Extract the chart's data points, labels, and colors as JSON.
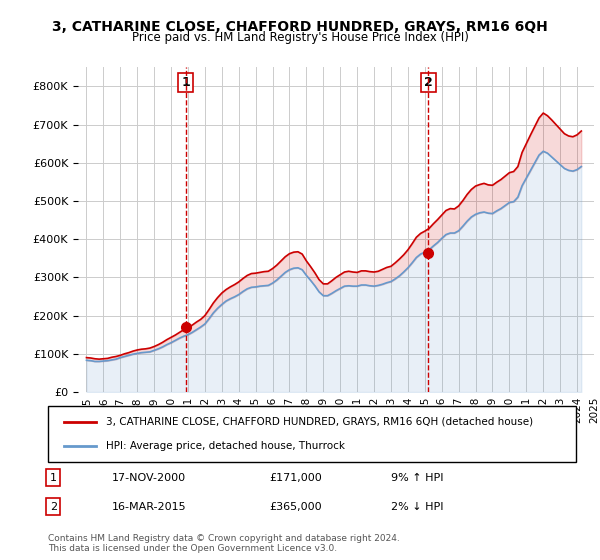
{
  "title": "3, CATHARINE CLOSE, CHAFFORD HUNDRED, GRAYS, RM16 6QH",
  "subtitle": "Price paid vs. HM Land Registry's House Price Index (HPI)",
  "legend_line1": "3, CATHARINE CLOSE, CHAFFORD HUNDRED, GRAYS, RM16 6QH (detached house)",
  "legend_line2": "HPI: Average price, detached house, Thurrock",
  "ylabel_ticks": [
    "£0",
    "£100K",
    "£200K",
    "£300K",
    "£400K",
    "£500K",
    "£600K",
    "£700K",
    "£800K"
  ],
  "ytick_values": [
    0,
    100000,
    200000,
    300000,
    400000,
    500000,
    600000,
    700000,
    800000
  ],
  "ylim": [
    0,
    850000
  ],
  "sale1_label": "1",
  "sale1_date": "17-NOV-2000",
  "sale1_price": "£171,000",
  "sale1_hpi": "9% ↑ HPI",
  "sale1_year": 2000.88,
  "sale1_value": 171000,
  "sale2_label": "2",
  "sale2_date": "16-MAR-2015",
  "sale2_price": "£365,000",
  "sale2_hpi": "2% ↓ HPI",
  "sale2_year": 2015.21,
  "sale2_value": 365000,
  "copyright": "Contains HM Land Registry data © Crown copyright and database right 2024.\nThis data is licensed under the Open Government Licence v3.0.",
  "line_color_red": "#cc0000",
  "line_color_blue": "#6699cc",
  "marker_color_red": "#cc0000",
  "grid_color": "#cccccc",
  "dashed_color": "#cc0000",
  "hpi_years": [
    1995.0,
    1995.25,
    1995.5,
    1995.75,
    1996.0,
    1996.25,
    1996.5,
    1996.75,
    1997.0,
    1997.25,
    1997.5,
    1997.75,
    1998.0,
    1998.25,
    1998.5,
    1998.75,
    1999.0,
    1999.25,
    1999.5,
    1999.75,
    2000.0,
    2000.25,
    2000.5,
    2000.75,
    2001.0,
    2001.25,
    2001.5,
    2001.75,
    2002.0,
    2002.25,
    2002.5,
    2002.75,
    2003.0,
    2003.25,
    2003.5,
    2003.75,
    2004.0,
    2004.25,
    2004.5,
    2004.75,
    2005.0,
    2005.25,
    2005.5,
    2005.75,
    2006.0,
    2006.25,
    2006.5,
    2006.75,
    2007.0,
    2007.25,
    2007.5,
    2007.75,
    2008.0,
    2008.25,
    2008.5,
    2008.75,
    2009.0,
    2009.25,
    2009.5,
    2009.75,
    2010.0,
    2010.25,
    2010.5,
    2010.75,
    2011.0,
    2011.25,
    2011.5,
    2011.75,
    2012.0,
    2012.25,
    2012.5,
    2012.75,
    2013.0,
    2013.25,
    2013.5,
    2013.75,
    2014.0,
    2014.25,
    2014.5,
    2014.75,
    2015.0,
    2015.25,
    2015.5,
    2015.75,
    2016.0,
    2016.25,
    2016.5,
    2016.75,
    2017.0,
    2017.25,
    2017.5,
    2017.75,
    2018.0,
    2018.25,
    2018.5,
    2018.75,
    2019.0,
    2019.25,
    2019.5,
    2019.75,
    2020.0,
    2020.25,
    2020.5,
    2020.75,
    2021.0,
    2021.25,
    2021.5,
    2021.75,
    2022.0,
    2022.25,
    2022.5,
    2022.75,
    2023.0,
    2023.25,
    2023.5,
    2023.75,
    2024.0,
    2024.25
  ],
  "hpi_values": [
    83000,
    82000,
    80000,
    80000,
    81000,
    82000,
    84000,
    86000,
    90000,
    93000,
    96000,
    99000,
    101000,
    103000,
    104000,
    105000,
    109000,
    113000,
    118000,
    124000,
    129000,
    135000,
    141000,
    146000,
    150000,
    156000,
    163000,
    170000,
    178000,
    192000,
    207000,
    219000,
    229000,
    238000,
    244000,
    249000,
    255000,
    263000,
    270000,
    274000,
    275000,
    277000,
    278000,
    279000,
    285000,
    293000,
    303000,
    313000,
    320000,
    324000,
    325000,
    320000,
    305000,
    292000,
    278000,
    262000,
    252000,
    252000,
    258000,
    265000,
    271000,
    277000,
    278000,
    277000,
    277000,
    280000,
    280000,
    278000,
    277000,
    279000,
    282000,
    286000,
    289000,
    296000,
    304000,
    314000,
    325000,
    338000,
    352000,
    361000,
    366000,
    372000,
    382000,
    391000,
    402000,
    412000,
    416000,
    416000,
    422000,
    434000,
    447000,
    458000,
    465000,
    469000,
    471000,
    468000,
    467000,
    474000,
    480000,
    488000,
    496000,
    498000,
    510000,
    540000,
    560000,
    580000,
    600000,
    620000,
    630000,
    625000,
    615000,
    605000,
    595000,
    585000,
    580000,
    578000,
    582000,
    590000
  ],
  "price_years": [
    1995.0,
    1995.25,
    1995.5,
    1995.75,
    1996.0,
    1996.25,
    1996.5,
    1996.75,
    1997.0,
    1997.25,
    1997.5,
    1997.75,
    1998.0,
    1998.25,
    1998.5,
    1998.75,
    1999.0,
    1999.25,
    1999.5,
    1999.75,
    2000.0,
    2000.25,
    2000.5,
    2000.75,
    2001.0,
    2001.25,
    2001.5,
    2001.75,
    2002.0,
    2002.25,
    2002.5,
    2002.75,
    2003.0,
    2003.25,
    2003.5,
    2003.75,
    2004.0,
    2004.25,
    2004.5,
    2004.75,
    2005.0,
    2005.25,
    2005.5,
    2005.75,
    2006.0,
    2006.25,
    2006.5,
    2006.75,
    2007.0,
    2007.25,
    2007.5,
    2007.75,
    2008.0,
    2008.25,
    2008.5,
    2008.75,
    2009.0,
    2009.25,
    2009.5,
    2009.75,
    2010.0,
    2010.25,
    2010.5,
    2010.75,
    2011.0,
    2011.25,
    2011.5,
    2011.75,
    2012.0,
    2012.25,
    2012.5,
    2012.75,
    2013.0,
    2013.25,
    2013.5,
    2013.75,
    2014.0,
    2014.25,
    2014.5,
    2014.75,
    2015.0,
    2015.25,
    2015.5,
    2015.75,
    2016.0,
    2016.25,
    2016.5,
    2016.75,
    2017.0,
    2017.25,
    2017.5,
    2017.75,
    2018.0,
    2018.25,
    2018.5,
    2018.75,
    2019.0,
    2019.25,
    2019.5,
    2019.75,
    2020.0,
    2020.25,
    2020.5,
    2020.75,
    2021.0,
    2021.25,
    2021.5,
    2021.75,
    2022.0,
    2022.25,
    2022.5,
    2022.75,
    2023.0,
    2023.25,
    2023.5,
    2023.75,
    2024.0,
    2024.25
  ],
  "price_values": [
    90000,
    89000,
    87000,
    86000,
    87000,
    88000,
    91000,
    93000,
    96000,
    100000,
    103000,
    107000,
    110000,
    112000,
    113000,
    115000,
    119000,
    124000,
    130000,
    137000,
    143000,
    149000,
    156000,
    163000,
    168000,
    175000,
    183000,
    190000,
    200000,
    216000,
    233000,
    247000,
    259000,
    268000,
    275000,
    281000,
    288000,
    297000,
    305000,
    310000,
    311000,
    313000,
    315000,
    316000,
    323000,
    332000,
    343000,
    354000,
    362000,
    366000,
    367000,
    361000,
    343000,
    328000,
    312000,
    294000,
    283000,
    283000,
    291000,
    300000,
    307000,
    314000,
    316000,
    314000,
    313000,
    317000,
    317000,
    315000,
    314000,
    316000,
    321000,
    326000,
    329000,
    338000,
    348000,
    359000,
    372000,
    388000,
    405000,
    415000,
    421000,
    428000,
    440000,
    451000,
    463000,
    475000,
    480000,
    479000,
    487000,
    501000,
    517000,
    530000,
    539000,
    543000,
    546000,
    542000,
    541000,
    549000,
    556000,
    565000,
    574000,
    577000,
    590000,
    627000,
    650000,
    673000,
    695000,
    717000,
    730000,
    723000,
    712000,
    700000,
    688000,
    676000,
    670000,
    668000,
    673000,
    683000
  ],
  "xlim": [
    1994.5,
    2025.0
  ],
  "xtick_years": [
    1995,
    1996,
    1997,
    1998,
    1999,
    2000,
    2001,
    2002,
    2003,
    2004,
    2005,
    2006,
    2007,
    2008,
    2009,
    2010,
    2011,
    2012,
    2013,
    2014,
    2015,
    2016,
    2017,
    2018,
    2019,
    2020,
    2021,
    2022,
    2023,
    2024,
    2025
  ]
}
